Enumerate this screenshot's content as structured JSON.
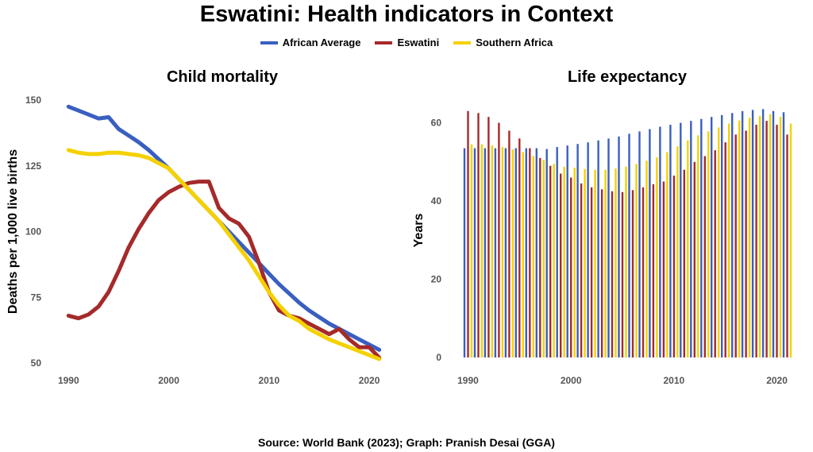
{
  "title": "Eswatini: Health indicators in Context",
  "source": "Source: World Bank (2023); Graph: Pranish Desai (GGA)",
  "legend": [
    {
      "name": "African Average",
      "color": "#3a5fc0"
    },
    {
      "name": "Eswatini",
      "color": "#a52a2a"
    },
    {
      "name": "Southern Africa",
      "color": "#f5d100"
    }
  ],
  "chart_data": [
    {
      "type": "line",
      "title": "Child mortality",
      "xlabel": "",
      "ylabel": "Deaths per 1,000 live births",
      "xlim": [
        1989.5,
        2021.5
      ],
      "ylim": [
        50,
        150
      ],
      "xticks": [
        1990,
        2000,
        2010,
        2020
      ],
      "yticks": [
        50,
        75,
        100,
        125,
        150
      ],
      "grid": false,
      "x": [
        1990,
        1991,
        1992,
        1993,
        1994,
        1995,
        1996,
        1997,
        1998,
        1999,
        2000,
        2001,
        2002,
        2003,
        2004,
        2005,
        2006,
        2007,
        2008,
        2009,
        2010,
        2011,
        2012,
        2013,
        2014,
        2015,
        2016,
        2017,
        2018,
        2019,
        2020,
        2021
      ],
      "series": [
        {
          "name": "African Average",
          "color": "#3a5fc0",
          "values": [
            147.5,
            146,
            144.5,
            143,
            143.5,
            139,
            136.5,
            134,
            131,
            127.5,
            124,
            120,
            116,
            112,
            108,
            104,
            100,
            96,
            92,
            88,
            84,
            80,
            76.5,
            73,
            70,
            67.5,
            65,
            63,
            61,
            59,
            57,
            55
          ]
        },
        {
          "name": "Eswatini",
          "color": "#a52a2a",
          "values": [
            68,
            67,
            68.5,
            71.5,
            77,
            85,
            94,
            101,
            107,
            112,
            115,
            117,
            118.5,
            119,
            119,
            109,
            105,
            103,
            98,
            88,
            77,
            70,
            68,
            67,
            65,
            63,
            61,
            63,
            59,
            56,
            56,
            52
          ]
        },
        {
          "name": "Southern Africa",
          "color": "#f5d100",
          "values": [
            131,
            130,
            129.5,
            129.5,
            130,
            130,
            129.5,
            129,
            128,
            126,
            124,
            120,
            116,
            112,
            108,
            104,
            99,
            94,
            89,
            83,
            77,
            72,
            68,
            66,
            63,
            61,
            59,
            57.5,
            56,
            54.5,
            53,
            51.5
          ]
        }
      ]
    },
    {
      "type": "bar",
      "title": "Life expectancy",
      "xlabel": "",
      "ylabel": "Years",
      "xlim": [
        1989.5,
        2021.5
      ],
      "ylim": [
        0,
        65
      ],
      "xticks": [
        1990,
        2000,
        2010,
        2020
      ],
      "yticks": [
        0,
        20,
        40,
        60
      ],
      "grid": false,
      "categories": [
        1990,
        1991,
        1992,
        1993,
        1994,
        1995,
        1996,
        1997,
        1998,
        1999,
        2000,
        2001,
        2002,
        2003,
        2004,
        2005,
        2006,
        2007,
        2008,
        2009,
        2010,
        2011,
        2012,
        2013,
        2014,
        2015,
        2016,
        2017,
        2018,
        2019,
        2020,
        2021
      ],
      "series": [
        {
          "name": "African Average",
          "color": "#3a5fc0",
          "values": [
            53.5,
            53.5,
            53.5,
            53.5,
            53.5,
            53.5,
            53.5,
            53.5,
            53.3,
            53.8,
            54.2,
            54.6,
            55,
            55.5,
            56,
            56.5,
            57.2,
            57.8,
            58.4,
            59,
            59.5,
            60,
            60.5,
            61,
            61.5,
            62,
            62.5,
            63,
            63.3,
            63.5,
            63,
            62.7
          ]
        },
        {
          "name": "Eswatini",
          "color": "#a52a2a",
          "values": [
            63,
            62.5,
            61.5,
            60,
            58,
            56,
            53.5,
            51,
            49,
            47,
            46,
            44.5,
            43.5,
            43,
            42.5,
            42.3,
            42.8,
            43.5,
            44.3,
            45,
            46.5,
            48,
            50,
            51.5,
            53,
            55,
            57,
            58,
            59.5,
            60.5,
            59.5,
            57
          ]
        },
        {
          "name": "Southern Africa",
          "color": "#f5d100",
          "values": [
            54.5,
            54.5,
            54.2,
            53.8,
            53.2,
            52.5,
            51.5,
            50.5,
            49.5,
            48.8,
            48.5,
            48.2,
            48,
            48,
            48.3,
            48.8,
            49.5,
            50.3,
            51.2,
            52.5,
            54,
            55.5,
            56.8,
            57.8,
            58.8,
            59.8,
            60.6,
            61.3,
            61.8,
            62.2,
            61.5,
            59.8
          ]
        }
      ]
    }
  ]
}
